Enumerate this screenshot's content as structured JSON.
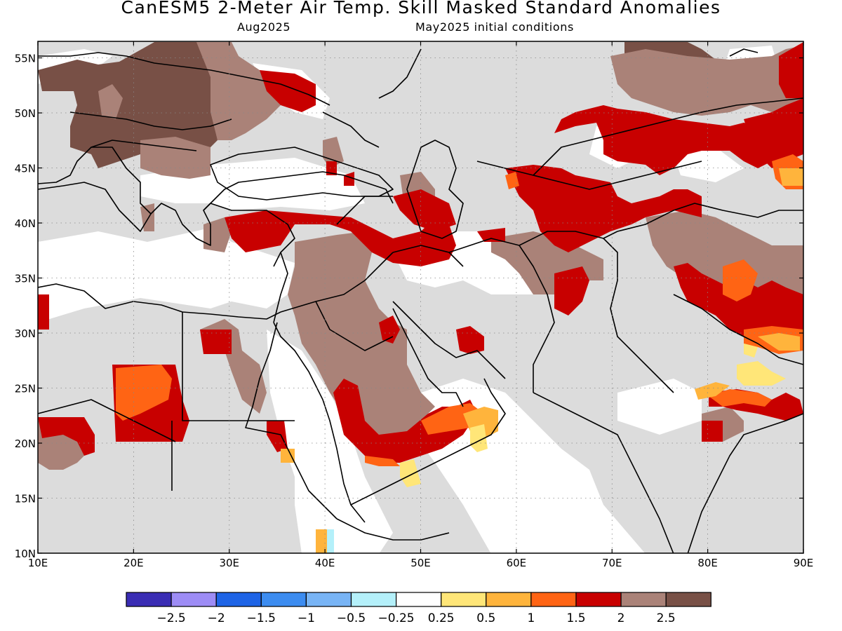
{
  "title": "CanESM5 2-Meter Air Temp. Skill Masked Standard Anomalies",
  "subtitle_left": "Aug2025",
  "subtitle_right": "May2025 initial conditions",
  "map": {
    "lon_range": [
      10,
      90
    ],
    "lat_range": [
      10,
      56.5
    ],
    "lon_ticks": [
      "10E",
      "20E",
      "30E",
      "40E",
      "50E",
      "60E",
      "70E",
      "80E",
      "90E"
    ],
    "lat_ticks": [
      "10N",
      "15N",
      "20N",
      "25N",
      "30N",
      "35N",
      "40N",
      "45N",
      "50N",
      "55N"
    ],
    "masked_color": "#dcdcdc",
    "land_unmasked_color": "#ffffff"
  },
  "colorbar": {
    "labels": [
      "-2.5",
      "-2",
      "-1.5",
      "-1",
      "-0.5",
      "-0.25",
      "0.25",
      "0.5",
      "1",
      "1.5",
      "2",
      "2.5"
    ],
    "colors": [
      "#3a2db4",
      "#9d8cf5",
      "#1e64e6",
      "#3c8cf0",
      "#78b4f5",
      "#b4f0fa",
      "#ffffff",
      "#ffe678",
      "#ffb43c",
      "#ff6414",
      "#c80000",
      "#aa8278",
      "#785046"
    ]
  }
}
